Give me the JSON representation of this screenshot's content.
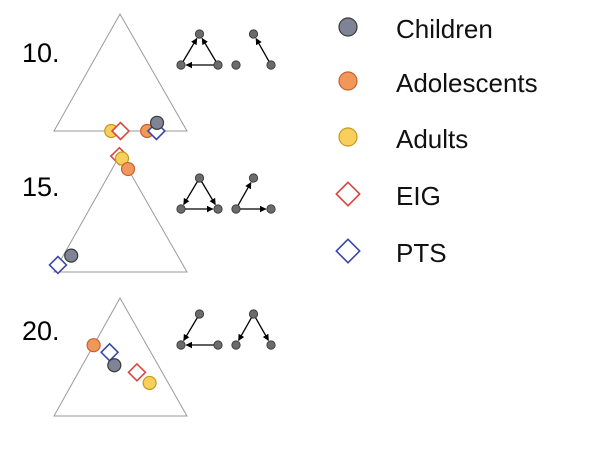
{
  "panels": [
    {
      "label": "10.",
      "markers": [
        {
          "group": "Adults",
          "a": 0.0,
          "b": 0.57
        },
        {
          "group": "EIG",
          "a": 0.0,
          "b": 0.5
        },
        {
          "group": "Adolescents",
          "a": 0.0,
          "b": 0.3
        },
        {
          "group": "PTS",
          "a": 0.0,
          "b": 0.23
        },
        {
          "group": "Children",
          "a": 0.07,
          "b": 0.19
        }
      ],
      "graphs": [
        {
          "nodes": [
            [
              0.5,
              0
            ],
            [
              0,
              1
            ],
            [
              1,
              1
            ]
          ],
          "arrows": [
            [
              2,
              0
            ],
            [
              1,
              0
            ],
            [
              2,
              1
            ]
          ]
        },
        {
          "nodes": [
            [
              0.5,
              0
            ],
            [
              0,
              1
            ],
            [
              1,
              1
            ]
          ],
          "arrows": [
            [
              2,
              0
            ]
          ]
        }
      ]
    },
    {
      "label": "15.",
      "markers": [
        {
          "group": "EIG",
          "a": 0.99,
          "b": 0.01
        },
        {
          "group": "Adults",
          "a": 0.97,
          "b": 0.0
        },
        {
          "group": "Adolescents",
          "a": 0.88,
          "b": 0.0
        },
        {
          "group": "PTS",
          "a": 0.06,
          "b": 0.94
        },
        {
          "group": "Children",
          "a": 0.14,
          "b": 0.8
        }
      ],
      "graphs": [
        {
          "nodes": [
            [
              0.5,
              0
            ],
            [
              0,
              1
            ],
            [
              1,
              1
            ]
          ],
          "arrows": [
            [
              0,
              2
            ],
            [
              0,
              1
            ],
            [
              1,
              2
            ]
          ]
        },
        {
          "nodes": [
            [
              0.5,
              0
            ],
            [
              0,
              1
            ],
            [
              1,
              1
            ]
          ],
          "arrows": [
            [
              1,
              0
            ],
            [
              1,
              2
            ]
          ]
        }
      ]
    },
    {
      "label": "20.",
      "markers": [
        {
          "group": "Adolescents",
          "a": 0.6,
          "b": 0.4
        },
        {
          "group": "PTS",
          "a": 0.54,
          "b": 0.31
        },
        {
          "group": "Children",
          "a": 0.43,
          "b": 0.33
        },
        {
          "group": "EIG",
          "a": 0.37,
          "b": 0.19
        },
        {
          "group": "Adults",
          "a": 0.28,
          "b": 0.14
        }
      ],
      "graphs": [
        {
          "nodes": [
            [
              0.5,
              0
            ],
            [
              0,
              1
            ],
            [
              1,
              1
            ]
          ],
          "arrows": [
            [
              2,
              1
            ],
            [
              0,
              1
            ]
          ]
        },
        {
          "nodes": [
            [
              0.5,
              0
            ],
            [
              0,
              1
            ],
            [
              1,
              1
            ]
          ],
          "arrows": [
            [
              0,
              1
            ],
            [
              0,
              2
            ]
          ]
        }
      ]
    }
  ],
  "legend": [
    {
      "label": "Children",
      "shape": "circle",
      "fill": "#7e8495",
      "stroke": "#3a3a3a"
    },
    {
      "label": "Adolescents",
      "shape": "circle",
      "fill": "#f0975a",
      "stroke": "#c86030"
    },
    {
      "label": "Adults",
      "shape": "circle",
      "fill": "#f7cf5a",
      "stroke": "#c89820"
    },
    {
      "label": "EIG",
      "shape": "diamond",
      "fill": "#ffffff",
      "stroke": "#d9473f"
    },
    {
      "label": "PTS",
      "shape": "diamond",
      "fill": "#ffffff",
      "stroke": "#3b48a8"
    }
  ],
  "colors": {
    "triangle": "#9a9a9a",
    "node": "#6b6b6b",
    "edge": "#000000"
  }
}
